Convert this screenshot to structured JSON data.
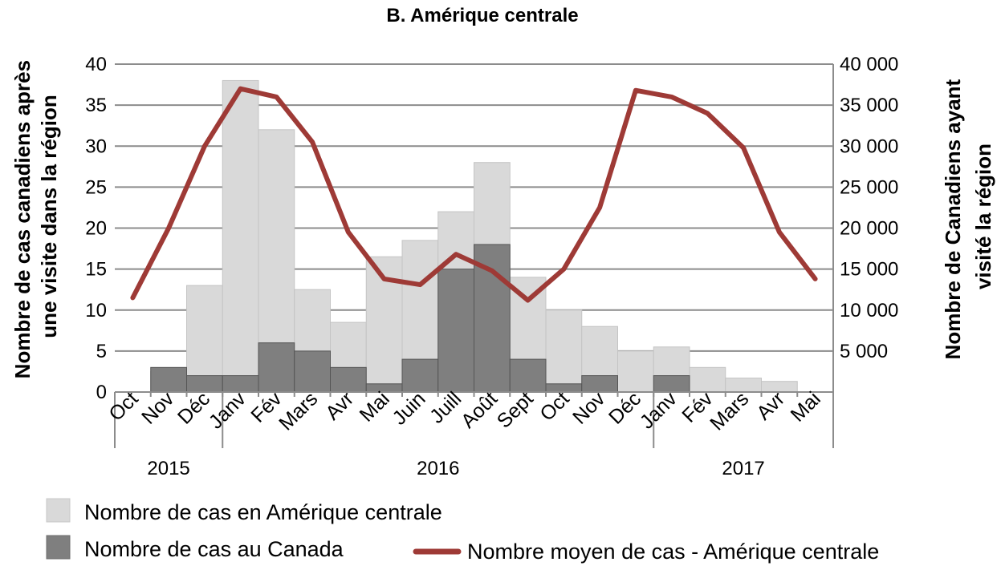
{
  "chart_data": {
    "type": "bar+line",
    "title": "B. Amérique centrale",
    "categories": [
      "Oct",
      "Nov",
      "Déc",
      "Janv",
      "Fév",
      "Mars",
      "Avr",
      "Mai",
      "Juin",
      "Juill",
      "Août",
      "Sept",
      "Oct",
      "Nov",
      "Déc",
      "Janv",
      "Fév",
      "Mars",
      "Avr",
      "Mai"
    ],
    "years": [
      {
        "label": "2015",
        "first_index": 0,
        "last_index": 2
      },
      {
        "label": "2016",
        "first_index": 3,
        "last_index": 14
      },
      {
        "label": "2017",
        "first_index": 15,
        "last_index": 19
      }
    ],
    "ylabel_left": "Nombre de cas canadiens après une visite dans la région",
    "ylabel_left_lines": [
      "Nombre de cas canadiens après",
      "une visite dans la région"
    ],
    "ylabel_right": "Nombre de Canadiens ayant visité la région",
    "ylabel_right_lines": [
      "Nombre de Canadiens ayant",
      "visité la région"
    ],
    "ylim_left": [
      0,
      40
    ],
    "ylim_right": [
      0,
      40000
    ],
    "yticks_left": [
      "0",
      "5",
      "10",
      "15",
      "20",
      "25",
      "30",
      "35",
      "40"
    ],
    "yticks_right": [
      "5 000",
      "10 000",
      "15 000",
      "20 000",
      "25 000",
      "30 000",
      "35 000",
      "40 000"
    ],
    "grid": true,
    "series": [
      {
        "name": "Nombre de cas en Amérique centrale",
        "kind": "bar",
        "axis": "left",
        "color": "#d9d9d9",
        "values": [
          0,
          2.5,
          13,
          38,
          32,
          12.5,
          8.5,
          16.5,
          18.5,
          22,
          28,
          14,
          10,
          8,
          5,
          5.5,
          3,
          1.7,
          1.3,
          0
        ]
      },
      {
        "name": "Nombre de cas au Canada",
        "kind": "bar",
        "axis": "left",
        "color": "#7f7f7f",
        "values": [
          0,
          3,
          2,
          2,
          6,
          5,
          3,
          1,
          4,
          15,
          18,
          4,
          1,
          2,
          0,
          2,
          0,
          0,
          0,
          0
        ]
      },
      {
        "name": "Nombre moyen de cas - Amérique centrale",
        "kind": "line",
        "axis": "right",
        "color": "#9e3a36",
        "values": [
          11500,
          20000,
          30000,
          37000,
          36000,
          30500,
          19500,
          13800,
          13100,
          16800,
          14800,
          11200,
          15000,
          22500,
          36800,
          36000,
          34000,
          29800,
          19500,
          13800
        ]
      }
    ]
  }
}
